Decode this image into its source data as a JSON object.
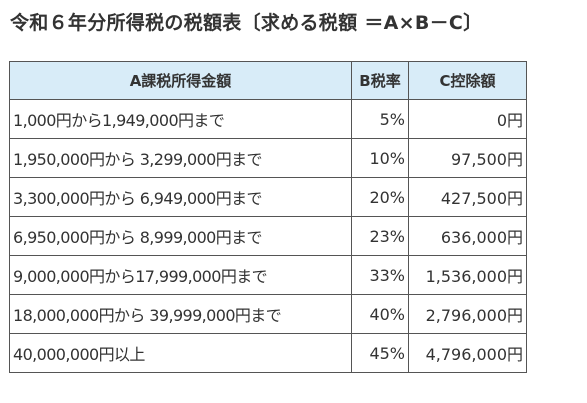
{
  "title": "令和６年分所得税の税額表〔求める税額 ＝A×B－C〕",
  "table": {
    "headers": [
      "A課税所得金額",
      "B税率",
      "C控除額"
    ],
    "rows": [
      {
        "income": "1,000円から1,949,000円まで",
        "rate": "5%",
        "deduction": "0円"
      },
      {
        "income": "1,950,000円から 3,299,000円まで",
        "rate": "10%",
        "deduction": "97,500円"
      },
      {
        "income": "3,300,000円から 6,949,000円まで",
        "rate": "20%",
        "deduction": "427,500円"
      },
      {
        "income": "6,950,000円から 8,999,000円まで",
        "rate": "23%",
        "deduction": "636,000円"
      },
      {
        "income": "9,000,000円から17,999,000円まで",
        "rate": "33%",
        "deduction": "1,536,000円"
      },
      {
        "income": "18,000,000円から 39,999,000円まで",
        "rate": "40%",
        "deduction": "2,796,000円"
      },
      {
        "income": "40,000,000円以上",
        "rate": "45%",
        "deduction": "4,796,000円"
      }
    ]
  },
  "colors": {
    "header_background": "#d8ecf8",
    "border": "#555555",
    "text": "#333333"
  }
}
